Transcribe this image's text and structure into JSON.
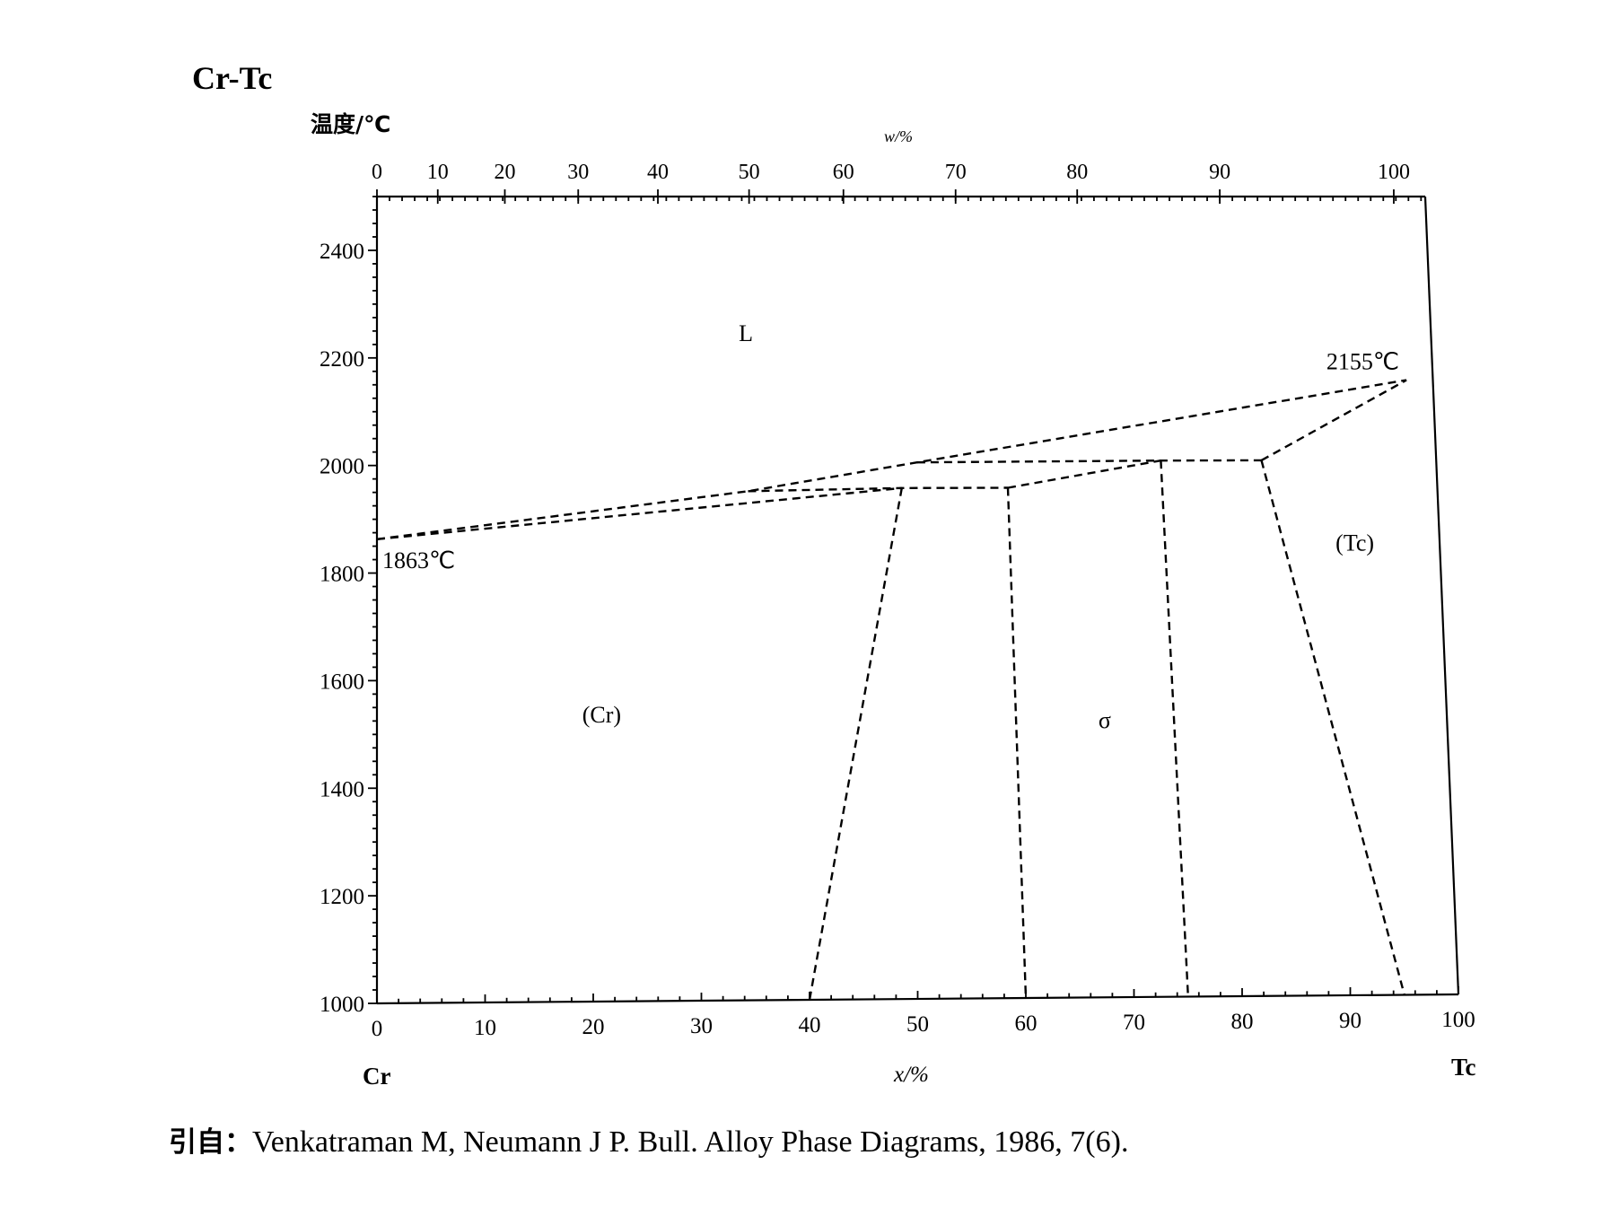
{
  "figure_title": "Cr-Tc",
  "y_axis_label": "温度/℃",
  "top_axis_label": "w/%",
  "bottom_axis_label": "x/%",
  "left_element": "Cr",
  "right_element": "Tc",
  "citation": {
    "prefix": "引自：",
    "text": "Venkatraman M, Neumann J P. Bull.  Alloy Phase Diagrams, 1986, 7(6)."
  },
  "chart_data": {
    "type": "phase-diagram",
    "title": "Cr-Tc",
    "xlabel": "x/%",
    "ylabel": "温度/℃",
    "top_xlabel": "w/%",
    "xlim": [
      0,
      100
    ],
    "ylim": [
      1000,
      2500
    ],
    "y_ticks": [
      1000,
      1200,
      1400,
      1600,
      1800,
      2000,
      2200,
      2400
    ],
    "x_ticks": [
      0,
      10,
      20,
      30,
      40,
      50,
      60,
      70,
      80,
      90,
      100
    ],
    "top_ticks": [
      {
        "label": "0",
        "x": 0
      },
      {
        "label": "10",
        "x": 5.8
      },
      {
        "label": "20",
        "x": 12.2
      },
      {
        "label": "30",
        "x": 19.2
      },
      {
        "label": "40",
        "x": 26.8
      },
      {
        "label": "50",
        "x": 35.5
      },
      {
        "label": "60",
        "x": 44.5
      },
      {
        "label": "70",
        "x": 55.2
      },
      {
        "label": "80",
        "x": 66.8
      },
      {
        "label": "90",
        "x": 80.4
      },
      {
        "label": "100",
        "x": 97.0
      }
    ],
    "special_points": [
      {
        "label": "1863℃",
        "x": 0,
        "y": 1863
      },
      {
        "label": "2155℃",
        "x": 97.5,
        "y": 2155
      }
    ],
    "phase_labels": [
      {
        "label": "L",
        "x": 35,
        "y": 2230
      },
      {
        "label": "(Cr)",
        "x": 21,
        "y": 1520
      },
      {
        "label": "σ",
        "x": 68,
        "y": 1505
      },
      {
        "label": "(Tc)",
        "x": 92,
        "y": 1835
      }
    ],
    "boundaries": [
      {
        "name": "liquidus",
        "points": [
          [
            0,
            1863
          ],
          [
            35,
            1950
          ],
          [
            51,
            2003
          ],
          [
            97.5,
            2155
          ]
        ]
      },
      {
        "name": "solidus",
        "points": [
          [
            0,
            1863
          ],
          [
            49.5,
            1955
          ]
        ]
      },
      {
        "name": "peritectic-1950",
        "points": [
          [
            35,
            1950
          ],
          [
            49.5,
            1955
          ],
          [
            59.5,
            1955
          ]
        ]
      },
      {
        "name": "peritectic-2000",
        "points": [
          [
            51,
            2003
          ],
          [
            74,
            2005
          ],
          [
            83.5,
            2005
          ]
        ]
      },
      {
        "name": "cr-solvus",
        "points": [
          [
            49.5,
            1955
          ],
          [
            40,
            1000
          ]
        ]
      },
      {
        "name": "sigma-left",
        "points": [
          [
            59.5,
            1955
          ],
          [
            60,
            1000
          ]
        ]
      },
      {
        "name": "sigma-top",
        "points": [
          [
            59.5,
            1955
          ],
          [
            74,
            2005
          ]
        ]
      },
      {
        "name": "sigma-right",
        "points": [
          [
            74,
            2005
          ],
          [
            75,
            1000
          ]
        ]
      },
      {
        "name": "tc-solvus",
        "points": [
          [
            83.5,
            2005
          ],
          [
            95,
            1000
          ]
        ]
      },
      {
        "name": "tc-solidus",
        "points": [
          [
            83.5,
            2005
          ],
          [
            97.5,
            2155
          ]
        ]
      }
    ]
  }
}
